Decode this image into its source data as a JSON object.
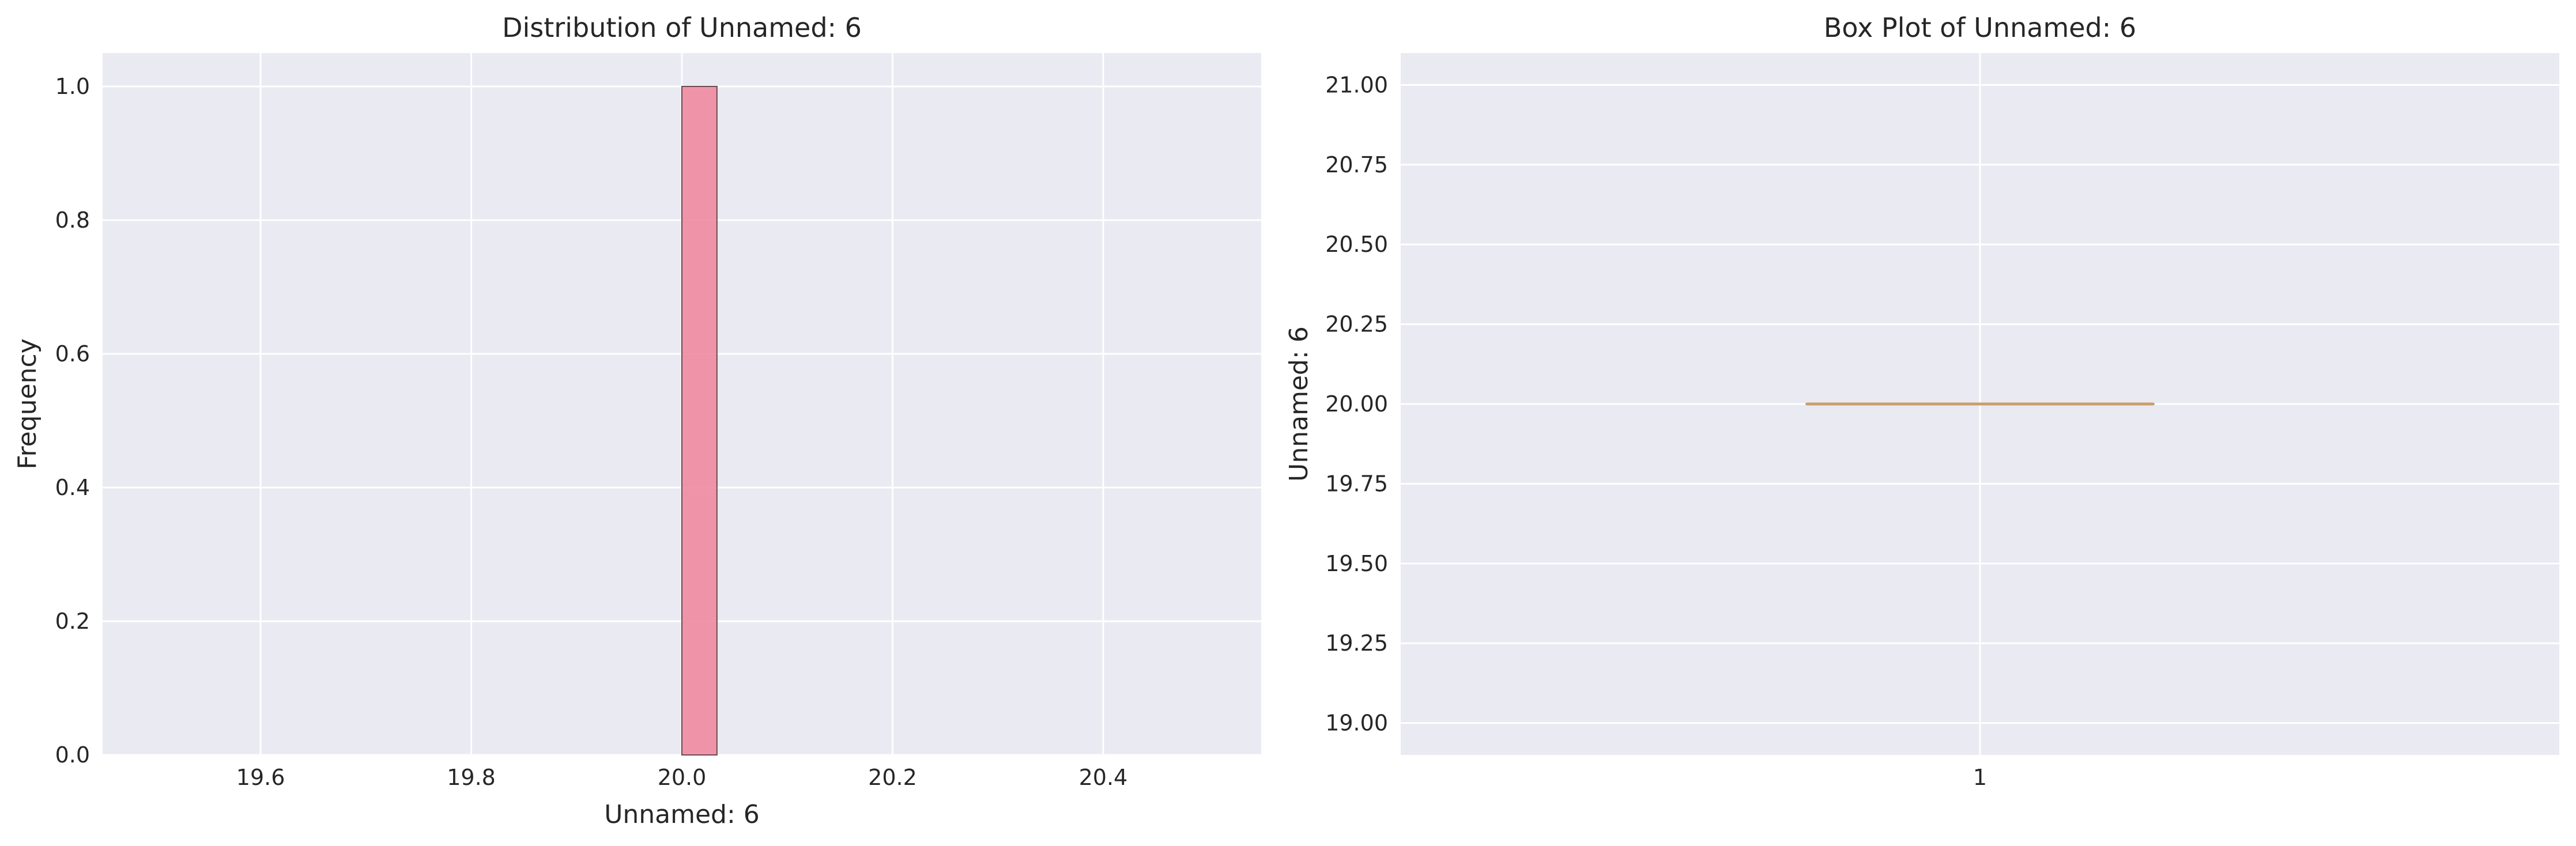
{
  "chart_data": [
    {
      "type": "bar",
      "title": "Distribution of Unnamed: 6",
      "xlabel": "Unnamed: 6",
      "ylabel": "Frequency",
      "xlim": [
        19.45,
        20.55
      ],
      "ylim": [
        0,
        1.05
      ],
      "xticks": [
        19.6,
        19.8,
        20.0,
        20.2,
        20.4
      ],
      "xtick_labels": [
        "19.6",
        "19.8",
        "20.0",
        "20.2",
        "20.4"
      ],
      "yticks": [
        0.0,
        0.2,
        0.4,
        0.6,
        0.8,
        1.0
      ],
      "ytick_labels": [
        "0.0",
        "0.2",
        "0.4",
        "0.6",
        "0.8",
        "1.0"
      ],
      "grid": true,
      "bins": [
        {
          "x0": 20.0,
          "x1": 20.0333,
          "count": 1
        }
      ],
      "bar_color": "#f08ba0"
    },
    {
      "type": "box",
      "title": "Box Plot of Unnamed: 6",
      "xlabel": "",
      "ylabel": "Unnamed: 6",
      "categories": [
        "1"
      ],
      "ylim": [
        18.9,
        21.1
      ],
      "yticks": [
        19.0,
        19.25,
        19.5,
        19.75,
        20.0,
        20.25,
        20.5,
        20.75,
        21.0
      ],
      "ytick_labels": [
        "19.00",
        "19.25",
        "19.50",
        "19.75",
        "20.00",
        "20.25",
        "20.50",
        "20.75",
        "21.00"
      ],
      "grid": true,
      "boxes": [
        {
          "min": 20.0,
          "q1": 20.0,
          "median": 20.0,
          "q3": 20.0,
          "max": 20.0
        }
      ],
      "median_color": "#c8a06a"
    }
  ],
  "colors": {
    "axes_bg": "#eaeaf2",
    "grid": "#ffffff",
    "text": "#262626",
    "bar_edge": "#6b4a52"
  }
}
